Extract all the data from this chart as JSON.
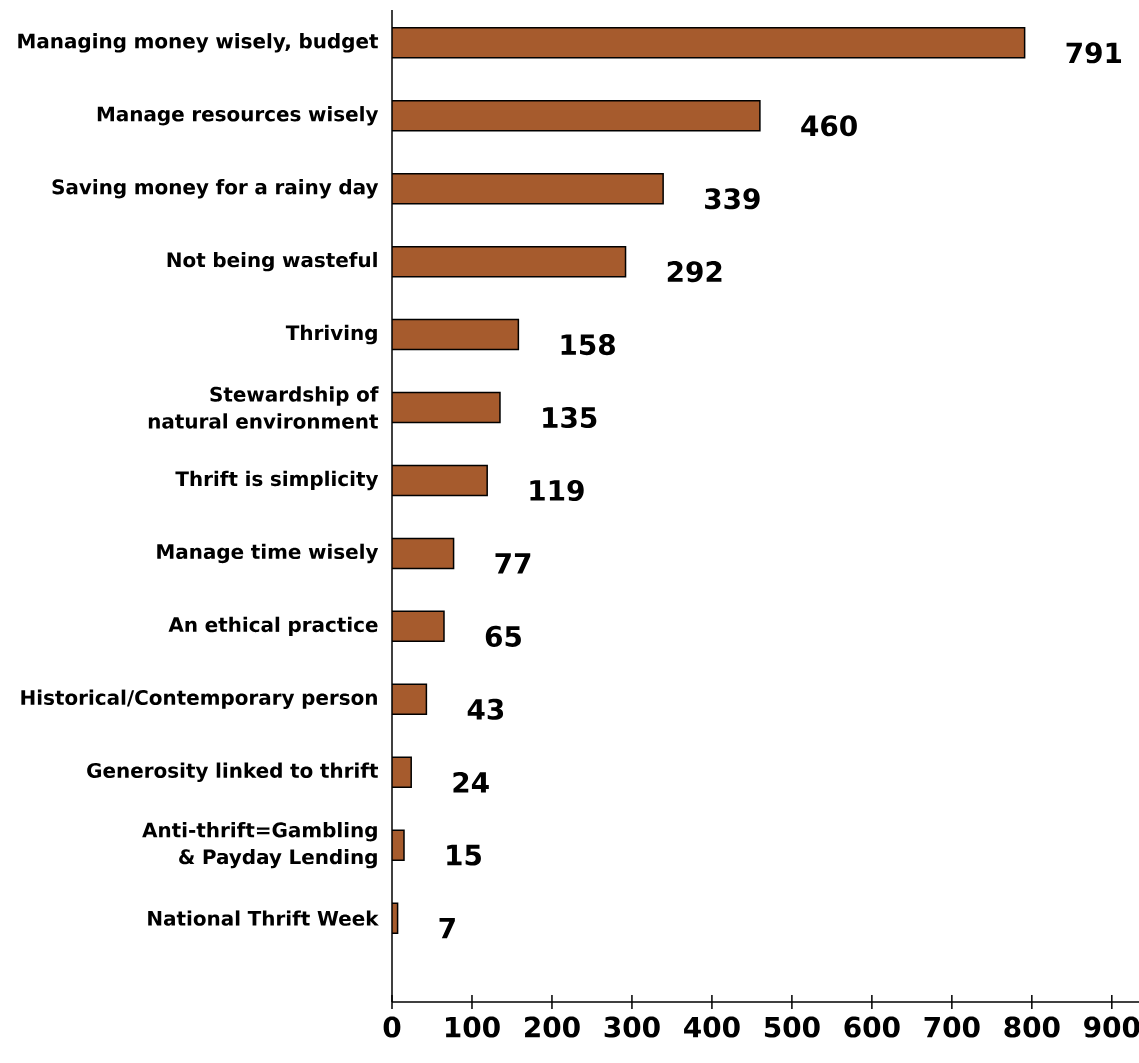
{
  "chart_data": {
    "type": "bar",
    "orientation": "horizontal",
    "categories": [
      "Managing money wisely, budget",
      "Manage resources wisely",
      "Saving money for a rainy day",
      "Not being wasteful",
      "Thriving",
      "Stewardship of natural environment",
      "Thrift is simplicity",
      "Manage time wisely",
      "An ethical practice",
      "Historical/Contemporary person",
      "Generosity linked to thrift",
      "Anti-thrift=Gambling & Payday Lending",
      "National Thrift Week"
    ],
    "values": [
      791,
      460,
      339,
      292,
      158,
      135,
      119,
      77,
      65,
      43,
      24,
      15,
      7
    ],
    "color": "#a65b2d",
    "xlim": [
      0,
      934
    ],
    "xticks": [
      0,
      100,
      200,
      300,
      400,
      500,
      600,
      700,
      800,
      900
    ],
    "data_labels": true,
    "grid": false
  }
}
